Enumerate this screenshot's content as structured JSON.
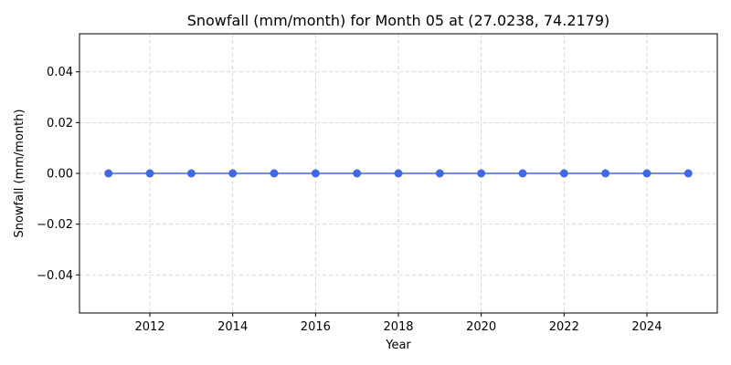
{
  "chart_data": {
    "type": "line",
    "title": "Snowfall (mm/month) for Month 05 at (27.0238, 74.2179)",
    "xlabel": "Year",
    "ylabel": "Snowfall (mm/month)",
    "x": [
      2011,
      2012,
      2013,
      2014,
      2015,
      2016,
      2017,
      2018,
      2019,
      2020,
      2021,
      2022,
      2023,
      2024,
      2025
    ],
    "series": [
      {
        "values": [
          0,
          0,
          0,
          0,
          0,
          0,
          0,
          0,
          0,
          0,
          0,
          0,
          0,
          0,
          0
        ]
      }
    ],
    "xlim": [
      2010.3,
      2025.7
    ],
    "ylim": [
      -0.055,
      0.055
    ],
    "xticks": [
      2012,
      2014,
      2016,
      2018,
      2020,
      2022,
      2024
    ],
    "xtick_labels": [
      "2012",
      "2014",
      "2016",
      "2018",
      "2020",
      "2022",
      "2024"
    ],
    "yticks": [
      -0.04,
      -0.02,
      0.0,
      0.02,
      0.04
    ],
    "ytick_labels": [
      "−0.04",
      "−0.02",
      "0.00",
      "0.02",
      "0.04"
    ],
    "grid": true,
    "line_color": "#4169e1",
    "marker": "circle"
  }
}
